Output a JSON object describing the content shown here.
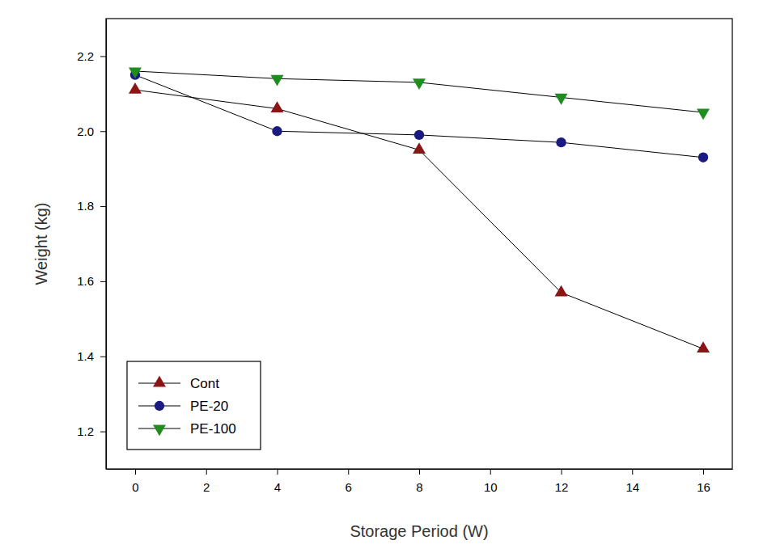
{
  "chart_data": {
    "type": "line",
    "x_label": "Storage Period (W)",
    "y_label": "Weight (kg)",
    "x": [
      0,
      4,
      8,
      12,
      16
    ],
    "series": [
      {
        "name": "Cont",
        "color": "#8b1414",
        "marker": "triangle-up",
        "line_style": "solid",
        "values": [
          2.11,
          2.06,
          1.95,
          1.57,
          1.42
        ]
      },
      {
        "name": "PE-20",
        "color": "#1a1a80",
        "marker": "circle",
        "line_style": "solid",
        "values": [
          2.15,
          2.0,
          1.99,
          1.97,
          1.93
        ]
      },
      {
        "name": "PE-100",
        "color": "#1e8c1e",
        "marker": "triangle-down",
        "line_style": "solid",
        "values": [
          2.16,
          2.14,
          2.13,
          2.09,
          2.05
        ]
      }
    ],
    "xlim": [
      -0.82,
      16.82
    ],
    "xticks": [
      0,
      2,
      4,
      6,
      8,
      10,
      12,
      14,
      16
    ],
    "ylim": [
      1.1,
      2.3
    ],
    "yticks": [
      1.2,
      1.4,
      1.6,
      1.8,
      {
        "value": 2,
        "label": "2.0"
      },
      2.2
    ],
    "legend": "lower left",
    "grid": false
  }
}
